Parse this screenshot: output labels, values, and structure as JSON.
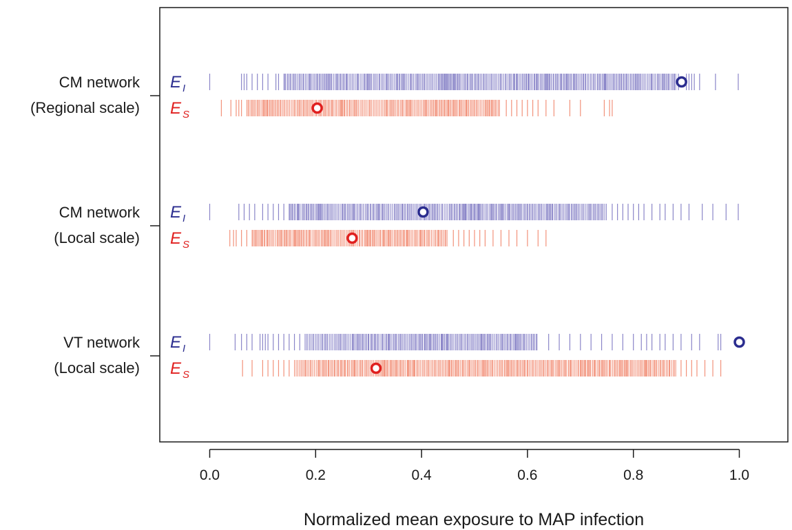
{
  "chart_data": {
    "type": "scatter",
    "title": "",
    "xlabel": "Normalized mean exposure to MAP infection",
    "ylabel": "",
    "xlim": [
      -0.095,
      1.095
    ],
    "xticks": [
      "0.0",
      "0.2",
      "0.4",
      "0.6",
      "0.8",
      "1.0"
    ],
    "xtick_values": [
      0,
      0.2,
      0.4,
      0.6,
      0.8,
      1.0
    ],
    "legend": "none",
    "grid": false,
    "colors": {
      "E_I_ticks": "#8a85c8",
      "E_S_ticks": "#f2917a",
      "E_I_marker": "#2b2d8f",
      "E_S_marker": "#e0201f",
      "axis": "#1a1a1a"
    },
    "groups": [
      {
        "label_line1": "CM network",
        "label_line2": "(Regional scale)",
        "series": [
          {
            "name_main": "E",
            "name_sub": "I",
            "color_key": "E_I",
            "dense_range": [
              0.14,
              0.88
            ],
            "sparse_values": [
              0.0,
              0.06,
              0.065,
              0.07,
              0.08,
              0.09,
              0.1,
              0.11,
              0.125,
              0.13,
              0.885,
              0.9,
              0.905,
              0.91,
              0.915,
              0.925,
              0.955,
              0.998
            ],
            "marker": 0.891
          },
          {
            "name_main": "E",
            "name_sub": "S",
            "color_key": "E_S",
            "dense_range": [
              0.07,
              0.55
            ],
            "sparse_values": [
              0.022,
              0.04,
              0.05,
              0.055,
              0.06,
              0.56,
              0.57,
              0.58,
              0.59,
              0.6,
              0.61,
              0.62,
              0.635,
              0.65,
              0.68,
              0.7,
              0.745,
              0.755,
              0.76
            ],
            "marker": 0.203
          }
        ]
      },
      {
        "label_line1": "CM network",
        "label_line2": "(Local scale)",
        "series": [
          {
            "name_main": "E",
            "name_sub": "I",
            "color_key": "E_I",
            "dense_range": [
              0.15,
              0.75
            ],
            "sparse_values": [
              0.0,
              0.055,
              0.065,
              0.075,
              0.085,
              0.1,
              0.11,
              0.12,
              0.13,
              0.14,
              0.76,
              0.77,
              0.78,
              0.79,
              0.8,
              0.81,
              0.82,
              0.835,
              0.85,
              0.86,
              0.875,
              0.89,
              0.905,
              0.93,
              0.95,
              0.975,
              0.998
            ],
            "marker": 0.403
          },
          {
            "name_main": "E",
            "name_sub": "S",
            "color_key": "E_S",
            "dense_range": [
              0.08,
              0.45
            ],
            "sparse_values": [
              0.038,
              0.045,
              0.05,
              0.06,
              0.07,
              0.46,
              0.47,
              0.48,
              0.49,
              0.5,
              0.51,
              0.52,
              0.535,
              0.55,
              0.565,
              0.58,
              0.6,
              0.62,
              0.635
            ],
            "marker": 0.269
          }
        ]
      },
      {
        "label_line1": "VT network",
        "label_line2": "(Local scale)",
        "series": [
          {
            "name_main": "E",
            "name_sub": "I",
            "color_key": "E_I",
            "dense_range": [
              0.18,
              0.62
            ],
            "sparse_values": [
              0.0,
              0.048,
              0.06,
              0.07,
              0.08,
              0.095,
              0.1,
              0.105,
              0.11,
              0.12,
              0.13,
              0.14,
              0.15,
              0.16,
              0.17,
              0.64,
              0.66,
              0.68,
              0.7,
              0.72,
              0.74,
              0.76,
              0.78,
              0.8,
              0.815,
              0.825,
              0.835,
              0.85,
              0.86,
              0.875,
              0.89,
              0.91,
              0.925,
              0.96,
              0.965
            ],
            "marker": 1.0
          },
          {
            "name_main": "E",
            "name_sub": "S",
            "color_key": "E_S",
            "dense_range": [
              0.16,
              0.88
            ],
            "sparse_values": [
              0.062,
              0.08,
              0.1,
              0.11,
              0.12,
              0.13,
              0.14,
              0.15,
              0.89,
              0.9,
              0.91,
              0.92,
              0.935,
              0.95,
              0.965
            ],
            "marker": 0.314
          }
        ]
      }
    ]
  }
}
